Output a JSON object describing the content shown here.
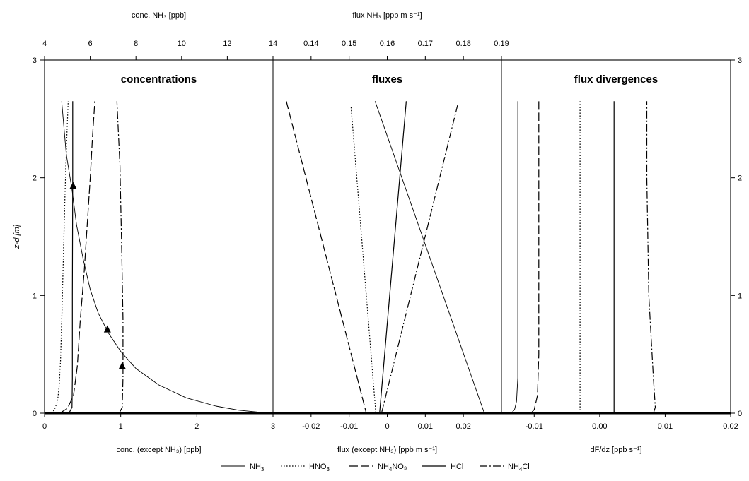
{
  "chart_data": {
    "type": "line",
    "y_axis": {
      "label": "z-d [m]",
      "range": [
        0,
        3
      ],
      "ticks": [
        0,
        1,
        2,
        3
      ],
      "right_ticks": [
        "0",
        "1",
        "2",
        "3"
      ]
    },
    "series_styles": [
      {
        "key": "NH3",
        "dash": "",
        "width": 0.9
      },
      {
        "key": "HNO3",
        "dash": "1.6 2.4",
        "width": 1.2
      },
      {
        "key": "NH4NO3",
        "dash": "12 4",
        "width": 1.2
      },
      {
        "key": "HCl",
        "dash": "",
        "width": 1.2
      },
      {
        "key": "NH4Cl",
        "dash": "11 3 2 3",
        "width": 1.2
      }
    ],
    "legend": [
      {
        "key": "NH3",
        "base": "NH",
        "sub": "3",
        "tail": ""
      },
      {
        "key": "HNO3",
        "base": "HNO",
        "sub": "3",
        "tail": ""
      },
      {
        "key": "NH4NO3",
        "base": "NH",
        "sub": "4",
        "tail": "NO₃"
      },
      {
        "key": "HCl",
        "base": "HCl",
        "sub": "",
        "tail": ""
      },
      {
        "key": "NH4Cl",
        "base": "NH",
        "sub": "4",
        "tail": "Cl"
      }
    ],
    "panels": [
      {
        "title": "concentrations",
        "bottom_axis": {
          "label": "conc. (except NH₃) [ppb]",
          "range": [
            0,
            3
          ],
          "ticks": [
            0,
            1,
            2,
            3
          ]
        },
        "top_axis": {
          "label": "conc. NH₃ [ppb]",
          "range": [
            4,
            14
          ],
          "ticks": [
            4,
            6,
            8,
            10,
            12,
            14
          ]
        },
        "series": [
          {
            "key": "NH3",
            "axis": "top",
            "points": [
              [
                4.75,
                2.65
              ],
              [
                4.95,
                2.2
              ],
              [
                5.2,
                1.9
              ],
              [
                5.4,
                1.6
              ],
              [
                5.7,
                1.3
              ],
              [
                6.0,
                1.05
              ],
              [
                6.35,
                0.85
              ],
              [
                6.8,
                0.68
              ],
              [
                7.35,
                0.52
              ],
              [
                8.0,
                0.38
              ],
              [
                9.0,
                0.24
              ],
              [
                10.2,
                0.13
              ],
              [
                11.5,
                0.06
              ],
              [
                12.5,
                0.025
              ],
              [
                13.3,
                0.01
              ],
              [
                14.0,
                0.004
              ]
            ]
          },
          {
            "key": "HNO3",
            "axis": "bottom",
            "points": [
              [
                0.09,
                0.0
              ],
              [
                0.13,
                0.03
              ],
              [
                0.17,
                0.1
              ],
              [
                0.19,
                0.22
              ],
              [
                0.21,
                0.45
              ],
              [
                0.23,
                0.9
              ],
              [
                0.25,
                1.4
              ],
              [
                0.27,
                1.9
              ],
              [
                0.29,
                2.3
              ],
              [
                0.31,
                2.65
              ]
            ]
          },
          {
            "key": "NH4NO3",
            "axis": "bottom",
            "points": [
              [
                0.2,
                0.0
              ],
              [
                0.3,
                0.04
              ],
              [
                0.38,
                0.15
              ],
              [
                0.43,
                0.4
              ],
              [
                0.47,
                0.8
              ],
              [
                0.52,
                1.2
              ],
              [
                0.56,
                1.6
              ],
              [
                0.6,
                2.0
              ],
              [
                0.63,
                2.35
              ],
              [
                0.66,
                2.65
              ]
            ]
          },
          {
            "key": "HCl",
            "axis": "bottom",
            "points": [
              [
                0.32,
                0.0
              ],
              [
                0.36,
                0.05
              ],
              [
                0.365,
                0.3
              ],
              [
                0.365,
                1.0
              ],
              [
                0.37,
                2.0
              ],
              [
                0.37,
                2.65
              ]
            ]
          },
          {
            "key": "NH4Cl",
            "axis": "bottom",
            "points": [
              [
                0.98,
                0.0
              ],
              [
                1.02,
                0.05
              ],
              [
                1.03,
                0.3
              ],
              [
                1.03,
                0.8
              ],
              [
                1.01,
                1.5
              ],
              [
                0.99,
                2.1
              ],
              [
                0.95,
                2.65
              ]
            ]
          }
        ],
        "markers": [
          {
            "axis": "top",
            "x": 5.25,
            "y": 1.93
          },
          {
            "axis": "top",
            "x": 6.75,
            "y": 0.71
          },
          {
            "axis": "top",
            "x": 7.4,
            "y": 0.4
          }
        ]
      },
      {
        "title": "fluxes",
        "bottom_axis": {
          "label": "flux (except NH₃) [ppb m s⁻¹]",
          "range": [
            -0.03,
            0.03
          ],
          "ticks": [
            -0.02,
            -0.01,
            0,
            0.01,
            0.02
          ],
          "tick_labels": [
            "-0.02",
            "-0.01",
            "0",
            "0.01",
            "0.02"
          ]
        },
        "top_axis": {
          "label": "flux NH₃ [ppb m s⁻¹]",
          "range": [
            0.13,
            0.19
          ],
          "ticks": [
            0.14,
            0.15,
            0.16,
            0.17,
            0.18,
            0.19
          ],
          "tick_labels": [
            "0.14",
            "0.15",
            "0.16",
            "0.17",
            "0.18",
            "0.19"
          ]
        },
        "series": [
          {
            "key": "NH3",
            "axis": "top",
            "points": [
              [
                0.1568,
                2.65
              ],
              [
                0.1855,
                0.0
              ]
            ]
          },
          {
            "key": "HNO3",
            "axis": "bottom",
            "points": [
              [
                -0.0095,
                2.6
              ],
              [
                -0.003,
                0.0
              ]
            ]
          },
          {
            "key": "NH4NO3",
            "axis": "bottom",
            "points": [
              [
                -0.0265,
                2.65
              ],
              [
                -0.0055,
                0.0
              ]
            ]
          },
          {
            "key": "HCl",
            "axis": "bottom",
            "points": [
              [
                0.005,
                2.65
              ],
              [
                -0.002,
                0.0
              ]
            ]
          },
          {
            "key": "NH4Cl",
            "axis": "bottom",
            "points": [
              [
                0.0185,
                2.62
              ],
              [
                -0.0015,
                0.0
              ]
            ]
          }
        ],
        "markers": []
      },
      {
        "title": "flux divergences",
        "bottom_axis": {
          "label": "dF/dz [ppb s⁻¹]",
          "range": [
            -0.015,
            0.02
          ],
          "ticks": [
            -0.01,
            0,
            0.01,
            0.02
          ],
          "tick_labels": [
            "-0.01",
            "0.00",
            "0.01",
            "0.02"
          ]
        },
        "top_axis": null,
        "series": [
          {
            "key": "NH3",
            "axis": "bottom",
            "points": [
              [
                -0.0135,
                0.0
              ],
              [
                -0.013,
                0.03
              ],
              [
                -0.0127,
                0.1
              ],
              [
                -0.0125,
                0.3
              ],
              [
                -0.0125,
                2.65
              ]
            ]
          },
          {
            "key": "HNO3",
            "axis": "bottom",
            "points": [
              [
                -0.003,
                0.0
              ],
              [
                -0.003,
                2.65
              ]
            ]
          },
          {
            "key": "NH4NO3",
            "axis": "bottom",
            "points": [
              [
                -0.0105,
                0.0
              ],
              [
                -0.01,
                0.03
              ],
              [
                -0.0095,
                0.15
              ],
              [
                -0.0093,
                0.5
              ],
              [
                -0.0093,
                2.65
              ]
            ]
          },
          {
            "key": "HCl",
            "axis": "bottom",
            "points": [
              [
                0.0022,
                0.0
              ],
              [
                0.0022,
                2.65
              ]
            ]
          },
          {
            "key": "NH4Cl",
            "axis": "bottom",
            "points": [
              [
                0.0082,
                0.0
              ],
              [
                0.0085,
                0.05
              ],
              [
                0.0082,
                0.3
              ],
              [
                0.0075,
                1.0
              ],
              [
                0.0072,
                2.0
              ],
              [
                0.0072,
                2.65
              ]
            ]
          }
        ],
        "markers": []
      }
    ]
  }
}
